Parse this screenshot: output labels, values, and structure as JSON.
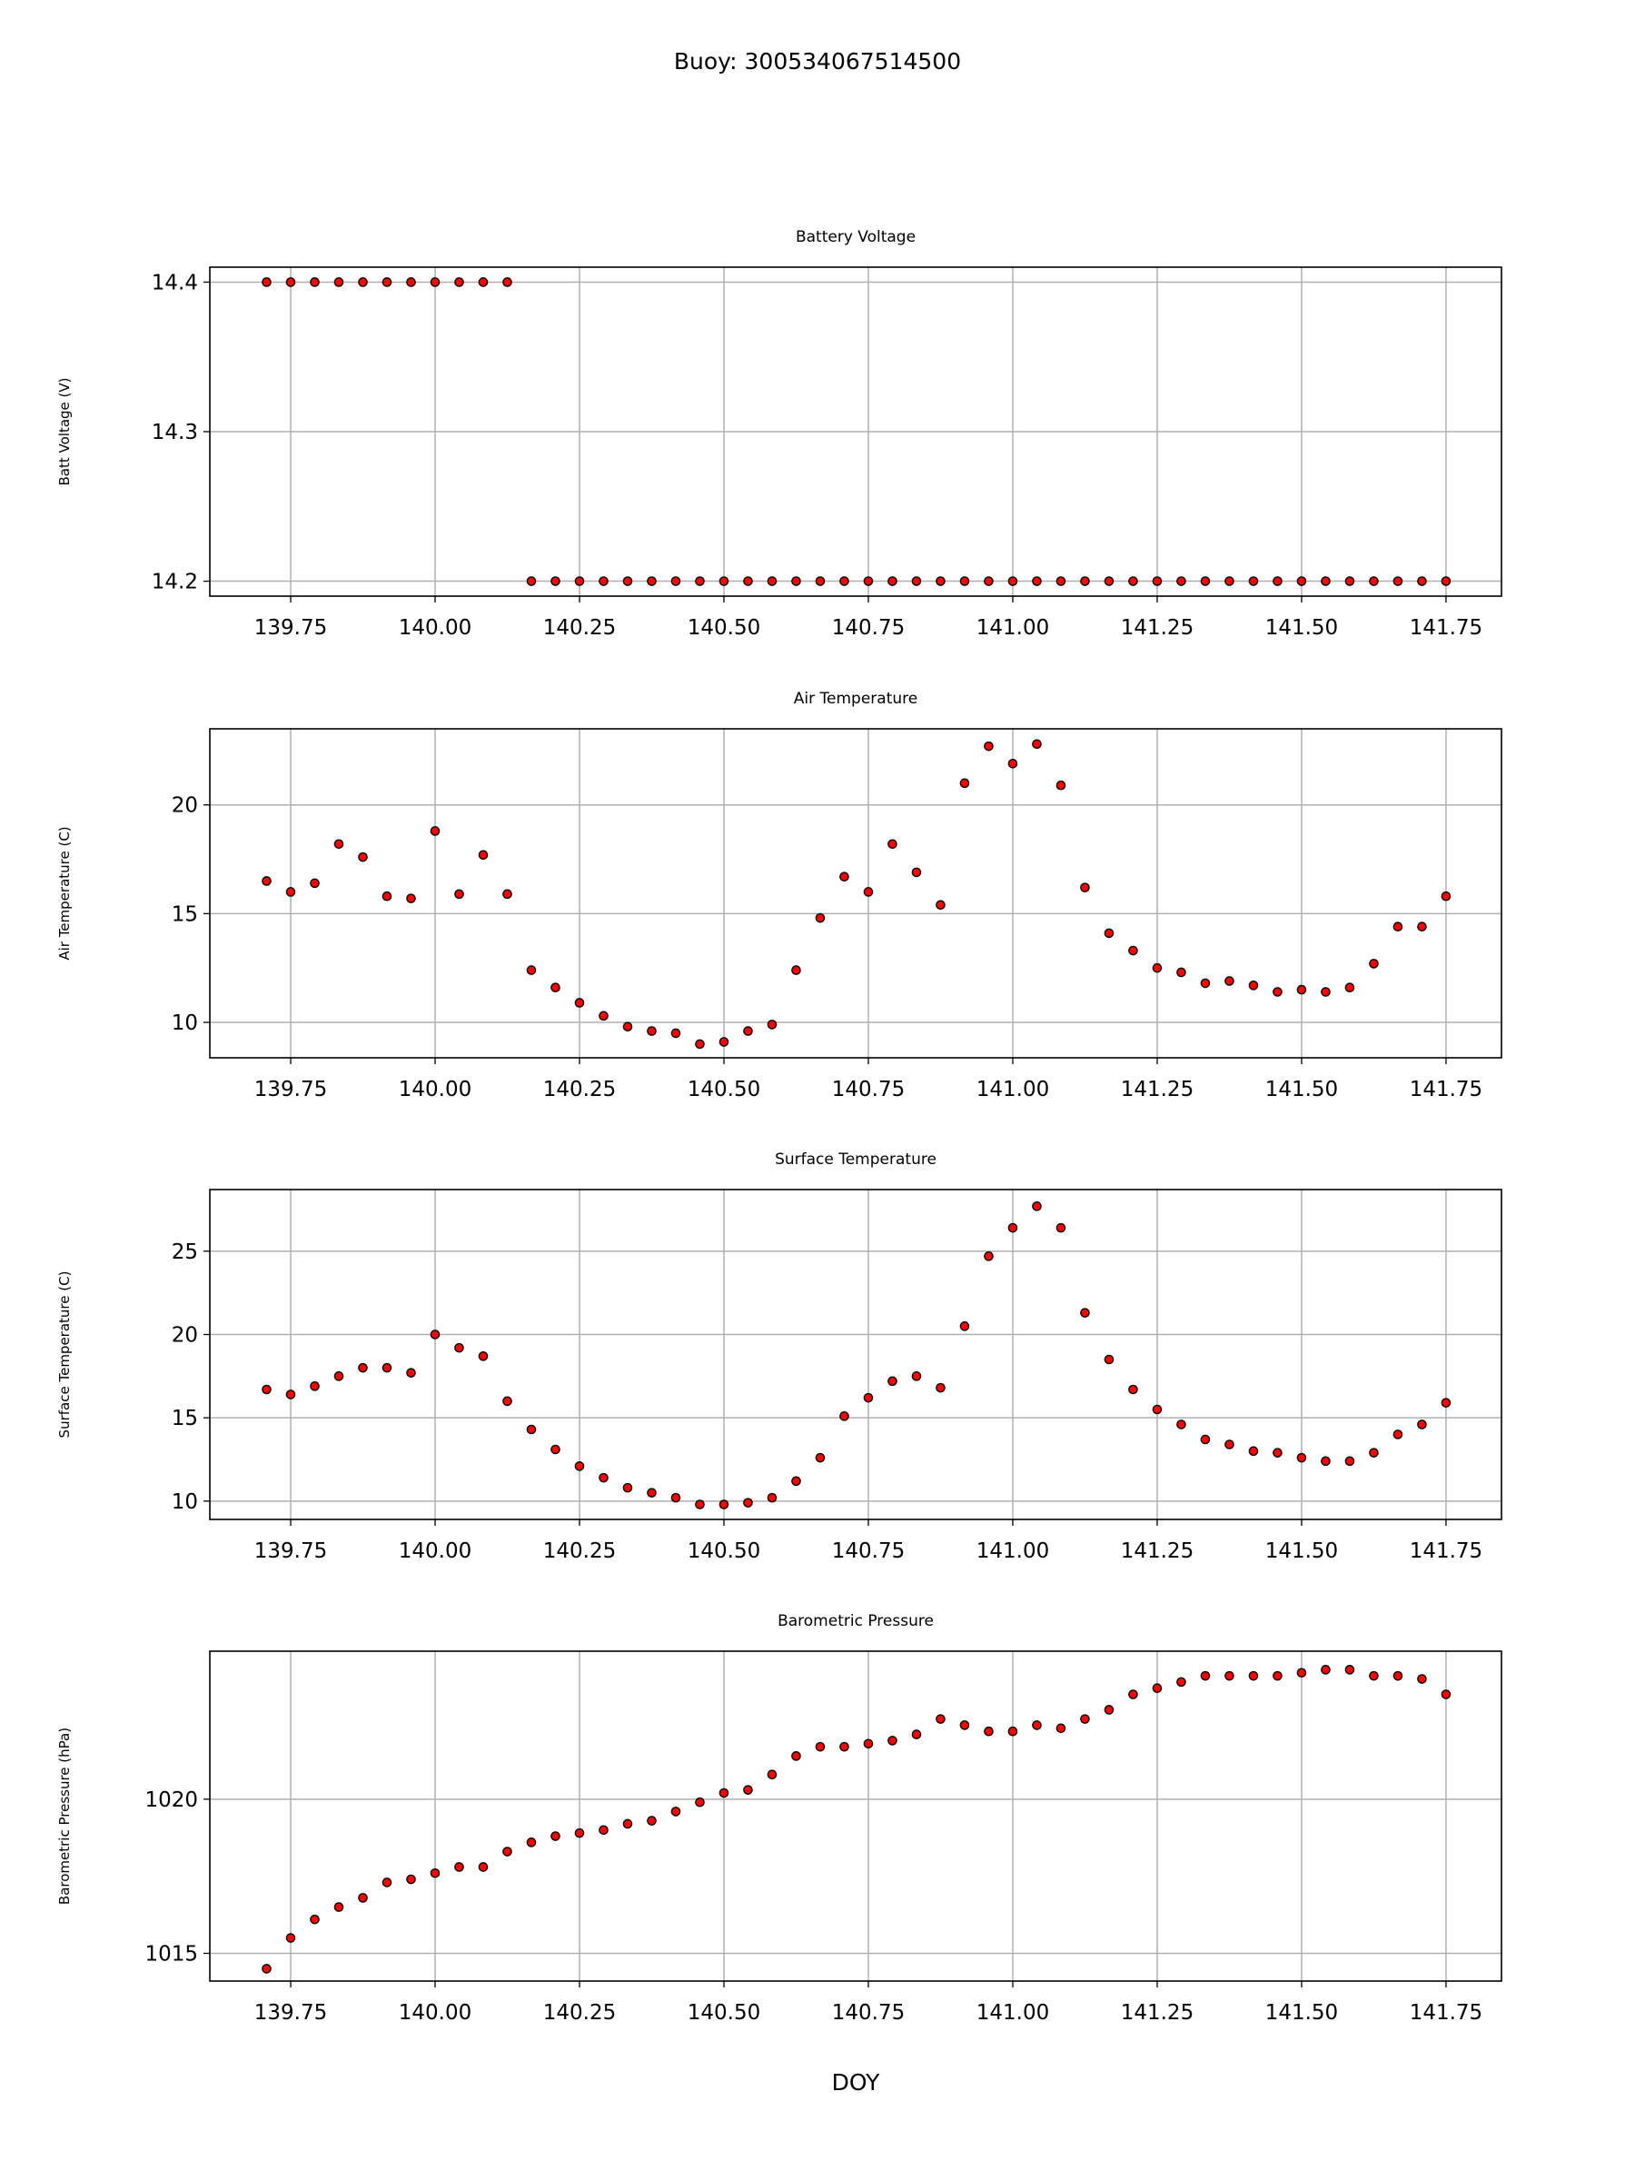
{
  "title": "Buoy: 300534067514500",
  "chart_data": [
    {
      "type": "scatter",
      "title": "Battery Voltage",
      "xlabel": "",
      "ylabel": "Batt Voltage (V)",
      "xlim": [
        139.61,
        141.846
      ],
      "ylim": [
        14.19,
        14.41
      ],
      "xticks": [
        "139.75",
        "140.00",
        "140.25",
        "140.50",
        "140.75",
        "141.00",
        "141.25",
        "141.50",
        "141.75"
      ],
      "yticks": [
        "14.2",
        "14.3",
        "14.4"
      ],
      "grid": true,
      "values": [
        14.4,
        14.4,
        14.4,
        14.4,
        14.4,
        14.4,
        14.4,
        14.4,
        14.4,
        14.4,
        14.4,
        14.2,
        14.2,
        14.2,
        14.2,
        14.2,
        14.2,
        14.2,
        14.2,
        14.2,
        14.2,
        14.2,
        14.2,
        14.2,
        14.2,
        14.2,
        14.2,
        14.2,
        14.2,
        14.2,
        14.2,
        14.2,
        14.2,
        14.2,
        14.2,
        14.2,
        14.2,
        14.2,
        14.2,
        14.2,
        14.2,
        14.2,
        14.2,
        14.2,
        14.2,
        14.2,
        14.2,
        14.2,
        14.2,
        14.2
      ]
    },
    {
      "type": "scatter",
      "title": "Air Temperature",
      "xlabel": "",
      "ylabel": "Air Temperature (C)",
      "xlim": [
        139.61,
        141.846
      ],
      "ylim": [
        8.37,
        23.5
      ],
      "xticks": [
        "139.75",
        "140.00",
        "140.25",
        "140.50",
        "140.75",
        "141.00",
        "141.25",
        "141.50",
        "141.75"
      ],
      "yticks": [
        "10",
        "15",
        "20"
      ],
      "grid": true,
      "values": [
        16.5,
        16.0,
        16.4,
        18.2,
        17.6,
        15.8,
        15.7,
        18.8,
        15.9,
        17.7,
        15.9,
        12.4,
        11.6,
        10.9,
        10.3,
        9.8,
        9.6,
        9.5,
        9.0,
        9.1,
        9.6,
        9.9,
        12.4,
        14.8,
        16.7,
        16.0,
        18.2,
        16.9,
        15.4,
        21.0,
        22.7,
        21.9,
        22.8,
        20.9,
        16.2,
        14.1,
        13.3,
        12.5,
        12.3,
        11.8,
        11.9,
        11.7,
        11.4,
        11.5,
        11.4,
        11.6,
        12.7,
        14.4,
        14.4,
        15.8
      ]
    },
    {
      "type": "scatter",
      "title": "Surface Temperature",
      "xlabel": "",
      "ylabel": "Surface Temperature (C)",
      "xlim": [
        139.61,
        141.846
      ],
      "ylim": [
        8.9,
        28.7
      ],
      "xticks": [
        "139.75",
        "140.00",
        "140.25",
        "140.50",
        "140.75",
        "141.00",
        "141.25",
        "141.50",
        "141.75"
      ],
      "yticks": [
        "10",
        "15",
        "20",
        "25"
      ],
      "grid": true,
      "values": [
        16.7,
        16.4,
        16.9,
        17.5,
        18.0,
        18.0,
        17.7,
        20.0,
        19.2,
        18.7,
        16.0,
        14.3,
        13.1,
        12.1,
        11.4,
        10.8,
        10.5,
        10.2,
        9.8,
        9.8,
        9.9,
        10.2,
        11.2,
        12.6,
        15.1,
        16.2,
        17.2,
        17.5,
        16.8,
        20.5,
        24.7,
        26.4,
        27.7,
        26.4,
        21.3,
        18.5,
        16.7,
        15.5,
        14.6,
        13.7,
        13.4,
        13.0,
        12.9,
        12.6,
        12.4,
        12.4,
        12.9,
        14.0,
        14.6,
        15.9
      ]
    },
    {
      "type": "scatter",
      "title": "Barometric Pressure",
      "xlabel": "DOY",
      "ylabel": "Barometric Pressure (hPa)",
      "xlim": [
        139.61,
        141.846
      ],
      "ylim": [
        1014.1,
        1024.8
      ],
      "xticks": [
        "139.75",
        "140.00",
        "140.25",
        "140.50",
        "140.75",
        "141.00",
        "141.25",
        "141.50",
        "141.75"
      ],
      "yticks": [
        "1015",
        "1020"
      ],
      "grid": true,
      "values": [
        1014.5,
        1015.5,
        1016.1,
        1016.5,
        1016.8,
        1017.3,
        1017.4,
        1017.6,
        1017.8,
        1017.8,
        1018.3,
        1018.6,
        1018.8,
        1018.9,
        1019.0,
        1019.2,
        1019.3,
        1019.6,
        1019.9,
        1020.2,
        1020.3,
        1020.8,
        1021.4,
        1021.7,
        1021.7,
        1021.8,
        1021.9,
        1022.1,
        1022.6,
        1022.4,
        1022.2,
        1022.2,
        1022.4,
        1022.3,
        1022.6,
        1022.9,
        1023.4,
        1023.6,
        1023.8,
        1024.0,
        1024.0,
        1024.0,
        1024.0,
        1024.1,
        1024.2,
        1024.2,
        1024.0,
        1024.0,
        1023.9,
        1023.4
      ]
    }
  ],
  "x_start": 139.7083,
  "x_step": 0.041667,
  "marker_color": "#ff0000",
  "marker_edge": "#000000"
}
